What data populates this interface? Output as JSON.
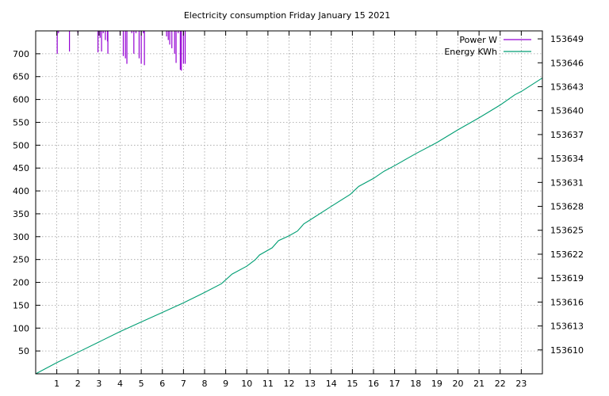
{
  "chart_data": {
    "type": "line",
    "title": "Electricity consumption Friday January 15 2021",
    "xlabel": "",
    "ylabel": "",
    "y2label": "",
    "xlim": [
      0,
      24
    ],
    "ylim": [
      0,
      750
    ],
    "y2lim": [
      153607,
      153650
    ],
    "x_ticks": [
      1,
      2,
      3,
      4,
      5,
      6,
      7,
      8,
      9,
      10,
      11,
      12,
      13,
      14,
      15,
      16,
      17,
      18,
      19,
      20,
      21,
      22,
      23
    ],
    "y_ticks": [
      50,
      100,
      150,
      200,
      250,
      300,
      350,
      400,
      450,
      500,
      550,
      600,
      650,
      700
    ],
    "y2_ticks": [
      153610,
      153613,
      153616,
      153619,
      153622,
      153625,
      153628,
      153631,
      153634,
      153637,
      153640,
      153643,
      153646,
      153649
    ],
    "grid": true,
    "legend_position": "top-right",
    "series": [
      {
        "name": "Power W",
        "axis": "y",
        "color": "#9400d3",
        "style": "impulses",
        "points": [
          [
            1.02,
            700
          ],
          [
            1.08,
            745
          ],
          [
            1.6,
            705
          ],
          [
            2.0,
            745
          ],
          [
            2.95,
            703
          ],
          [
            3.05,
            735
          ],
          [
            3.12,
            705
          ],
          [
            3.2,
            745
          ],
          [
            3.3,
            730
          ],
          [
            3.4,
            727
          ],
          [
            3.42,
            700
          ],
          [
            4.0,
            740
          ],
          [
            4.15,
            695
          ],
          [
            4.25,
            690
          ],
          [
            4.32,
            678
          ],
          [
            4.55,
            745
          ],
          [
            4.65,
            700
          ],
          [
            4.75,
            745
          ],
          [
            4.9,
            690
          ],
          [
            5.0,
            678
          ],
          [
            5.1,
            745
          ],
          [
            5.15,
            675
          ],
          [
            6.2,
            738
          ],
          [
            6.28,
            730
          ],
          [
            6.35,
            720
          ],
          [
            6.45,
            712
          ],
          [
            6.58,
            700
          ],
          [
            6.65,
            680
          ],
          [
            6.75,
            745
          ],
          [
            6.85,
            665
          ],
          [
            6.9,
            663
          ],
          [
            7.0,
            678
          ],
          [
            7.08,
            678
          ]
        ]
      },
      {
        "name": "Energy KWh",
        "axis": "y2",
        "color": "#009e73",
        "style": "lines",
        "points": [
          [
            0,
            153607.0
          ],
          [
            1,
            153608.4
          ],
          [
            2,
            153609.7
          ],
          [
            3,
            153611.0
          ],
          [
            4,
            153612.3
          ],
          [
            5,
            153613.5
          ],
          [
            6,
            153614.7
          ],
          [
            7,
            153615.9
          ],
          [
            8,
            153617.2
          ],
          [
            8.8,
            153618.3
          ],
          [
            9.3,
            153619.5
          ],
          [
            10,
            153620.5
          ],
          [
            10.4,
            153621.3
          ],
          [
            10.6,
            153621.9
          ],
          [
            11.2,
            153622.8
          ],
          [
            11.5,
            153623.7
          ],
          [
            12,
            153624.3
          ],
          [
            12.4,
            153624.9
          ],
          [
            12.7,
            153625.8
          ],
          [
            13,
            153626.3
          ],
          [
            14,
            153628.0
          ],
          [
            14.9,
            153629.5
          ],
          [
            15.3,
            153630.5
          ],
          [
            16,
            153631.5
          ],
          [
            16.5,
            153632.4
          ],
          [
            17,
            153633.1
          ],
          [
            18,
            153634.6
          ],
          [
            19,
            153636.0
          ],
          [
            20,
            153637.6
          ],
          [
            21,
            153639.1
          ],
          [
            22,
            153640.7
          ],
          [
            22.7,
            153642.0
          ],
          [
            23,
            153642.4
          ],
          [
            24,
            153644.1
          ]
        ]
      }
    ]
  }
}
